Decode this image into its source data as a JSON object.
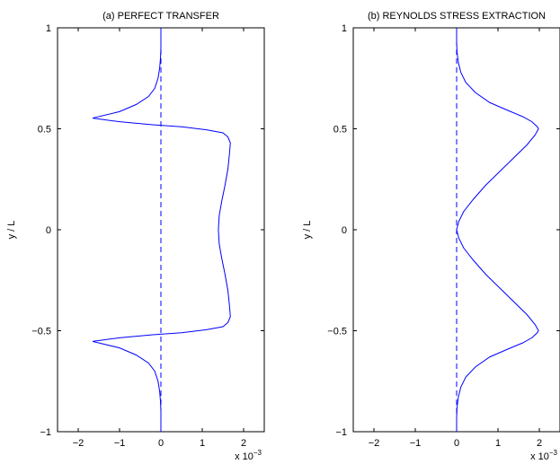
{
  "chart_data": [
    {
      "type": "line",
      "title": "(a)  PERFECT TRANSFER",
      "xlabel": "",
      "ylabel": "y / L",
      "xlim": [
        -2.5,
        2.5
      ],
      "ylim": [
        -1,
        1
      ],
      "xticks": [
        "−2",
        "−1",
        "0",
        "1",
        "2"
      ],
      "xtick_values": [
        -2,
        -1,
        0,
        1,
        2
      ],
      "yticks": [
        "−1",
        "−0.5",
        "0",
        "0.5",
        "1"
      ],
      "ytick_values": [
        -1,
        -0.5,
        0,
        0.5,
        1
      ],
      "x_multiplier_base": "x 10",
      "x_multiplier_exp": "−3",
      "grid": false,
      "series_color": "#0000ff",
      "series": [
        {
          "style": "solid",
          "points": [
            [
              0,
              -1.0
            ],
            [
              0,
              -0.9
            ],
            [
              -0.01,
              -0.85
            ],
            [
              -0.03,
              -0.8
            ],
            [
              -0.07,
              -0.75
            ],
            [
              -0.15,
              -0.7
            ],
            [
              -0.3,
              -0.66
            ],
            [
              -0.6,
              -0.62
            ],
            [
              -1.0,
              -0.585
            ],
            [
              -1.65,
              -0.553
            ],
            [
              -1.0,
              -0.535
            ],
            [
              -0.2,
              -0.52
            ],
            [
              0.5,
              -0.51
            ],
            [
              1.1,
              -0.495
            ],
            [
              1.5,
              -0.48
            ],
            [
              1.62,
              -0.46
            ],
            [
              1.68,
              -0.43
            ],
            [
              1.66,
              -0.38
            ],
            [
              1.62,
              -0.3
            ],
            [
              1.55,
              -0.22
            ],
            [
              1.47,
              -0.14
            ],
            [
              1.41,
              -0.07
            ],
            [
              1.39,
              0.0
            ],
            [
              1.41,
              0.07
            ],
            [
              1.47,
              0.14
            ],
            [
              1.55,
              0.22
            ],
            [
              1.62,
              0.3
            ],
            [
              1.66,
              0.38
            ],
            [
              1.68,
              0.43
            ],
            [
              1.62,
              0.46
            ],
            [
              1.5,
              0.48
            ],
            [
              1.1,
              0.495
            ],
            [
              0.5,
              0.51
            ],
            [
              -0.2,
              0.52
            ],
            [
              -1.0,
              0.535
            ],
            [
              -1.65,
              0.553
            ],
            [
              -1.0,
              0.585
            ],
            [
              -0.6,
              0.62
            ],
            [
              -0.3,
              0.66
            ],
            [
              -0.15,
              0.7
            ],
            [
              -0.07,
              0.75
            ],
            [
              -0.03,
              0.8
            ],
            [
              -0.01,
              0.85
            ],
            [
              0,
              0.9
            ],
            [
              0,
              1.0
            ]
          ]
        },
        {
          "style": "dashed",
          "points": [
            [
              0,
              -1.0
            ],
            [
              0,
              1.0
            ]
          ]
        }
      ]
    },
    {
      "type": "line",
      "title": "(b)  REYNOLDS STRESS EXTRACTION",
      "xlabel": "",
      "ylabel": "y / L",
      "xlim": [
        -2.5,
        2.5
      ],
      "ylim": [
        -1,
        1
      ],
      "xticks": [
        "−2",
        "−1",
        "0",
        "1",
        "2"
      ],
      "xtick_values": [
        -2,
        -1,
        0,
        1,
        2
      ],
      "yticks": [
        "−1",
        "−0.5",
        "0",
        "0.5",
        "1"
      ],
      "ytick_values": [
        -1,
        -0.5,
        0,
        0.5,
        1
      ],
      "x_multiplier_base": "x 10",
      "x_multiplier_exp": "−3",
      "grid": false,
      "series_color": "#0000ff",
      "series": [
        {
          "style": "solid",
          "points": [
            [
              0,
              -1.0
            ],
            [
              0,
              -0.93
            ],
            [
              0.01,
              -0.88
            ],
            [
              0.04,
              -0.83
            ],
            [
              0.1,
              -0.78
            ],
            [
              0.22,
              -0.73
            ],
            [
              0.45,
              -0.68
            ],
            [
              0.8,
              -0.63
            ],
            [
              1.25,
              -0.59
            ],
            [
              1.6,
              -0.56
            ],
            [
              1.82,
              -0.535
            ],
            [
              1.95,
              -0.51
            ],
            [
              1.98,
              -0.5
            ],
            [
              1.9,
              -0.47
            ],
            [
              1.7,
              -0.42
            ],
            [
              1.4,
              -0.36
            ],
            [
              1.05,
              -0.29
            ],
            [
              0.7,
              -0.22
            ],
            [
              0.4,
              -0.15
            ],
            [
              0.17,
              -0.09
            ],
            [
              0.05,
              -0.04
            ],
            [
              0.0,
              0.0
            ],
            [
              0.05,
              0.04
            ],
            [
              0.17,
              0.09
            ],
            [
              0.4,
              0.15
            ],
            [
              0.7,
              0.22
            ],
            [
              1.05,
              0.29
            ],
            [
              1.4,
              0.36
            ],
            [
              1.7,
              0.42
            ],
            [
              1.9,
              0.47
            ],
            [
              1.98,
              0.5
            ],
            [
              1.95,
              0.51
            ],
            [
              1.82,
              0.535
            ],
            [
              1.6,
              0.56
            ],
            [
              1.25,
              0.59
            ],
            [
              0.8,
              0.63
            ],
            [
              0.45,
              0.68
            ],
            [
              0.22,
              0.73
            ],
            [
              0.1,
              0.78
            ],
            [
              0.04,
              0.83
            ],
            [
              0.01,
              0.88
            ],
            [
              0,
              0.93
            ],
            [
              0,
              1.0
            ]
          ]
        },
        {
          "style": "dashed",
          "points": [
            [
              0,
              -1.0
            ],
            [
              0,
              1.0
            ]
          ]
        }
      ]
    }
  ]
}
